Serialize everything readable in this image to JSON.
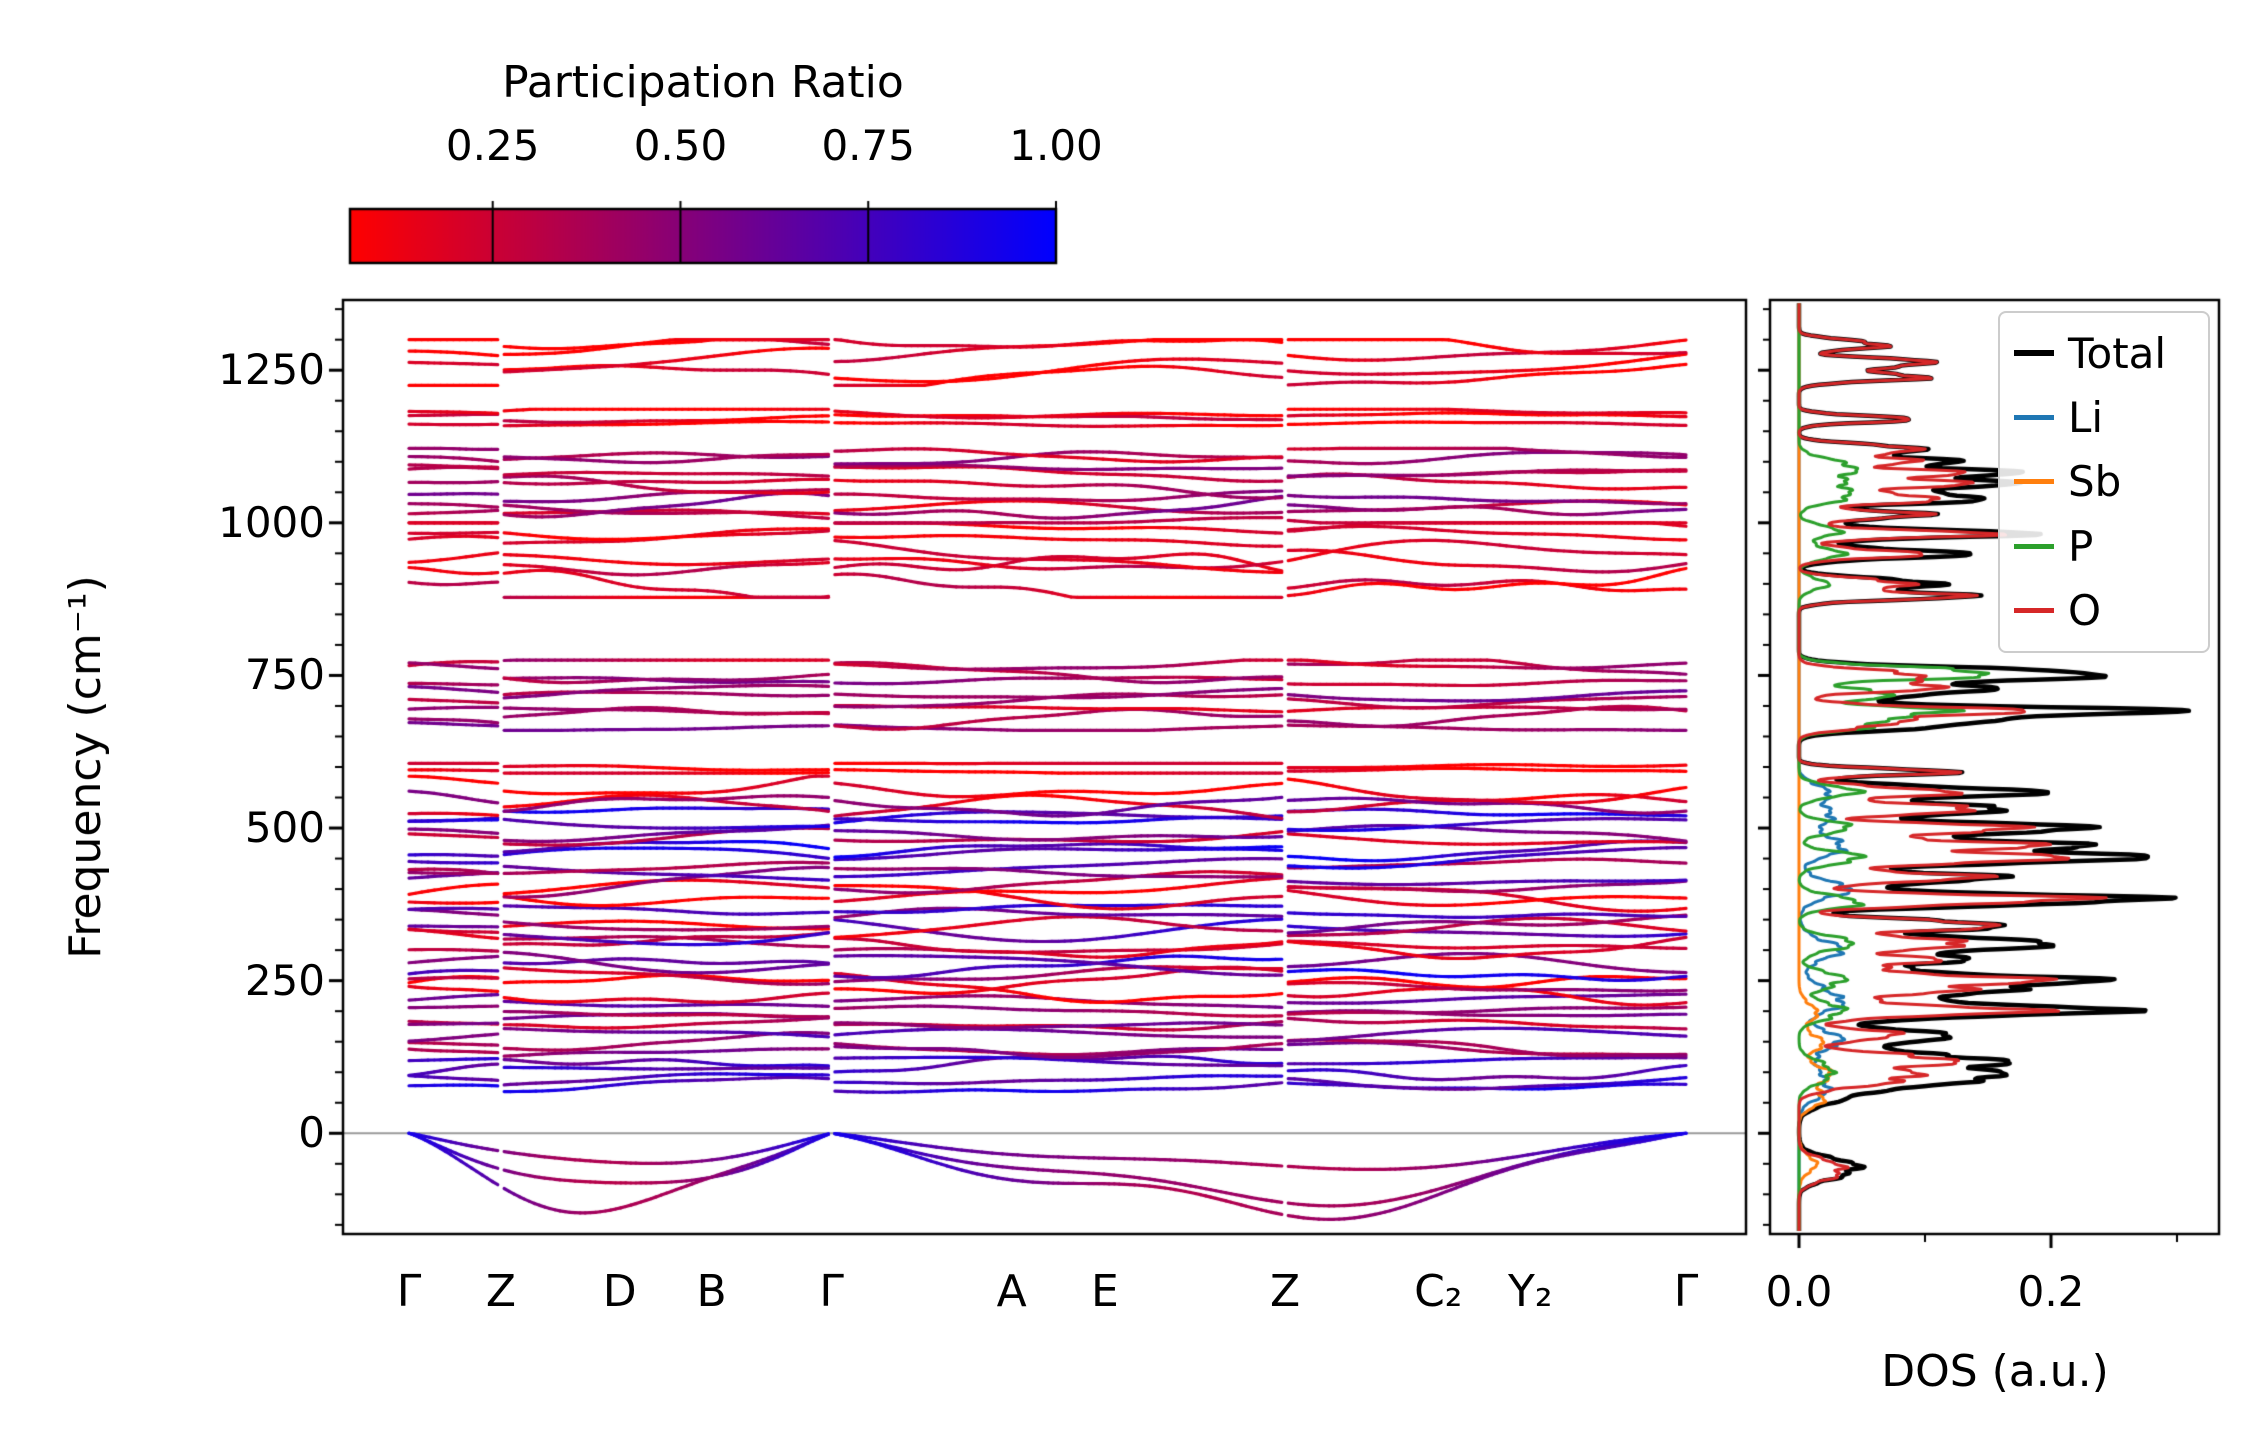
{
  "figure": {
    "kind": "phonon band structure with projected DOS",
    "background": "#ffffff"
  },
  "chart_data": {
    "type": "line",
    "colorbar": {
      "title": "Participation Ratio",
      "tick_labels": [
        "0.25",
        "0.50",
        "0.75",
        "1.00"
      ],
      "tick_values": [
        0.25,
        0.5,
        0.75,
        1.0
      ],
      "vmin": 0.06,
      "vmax": 1.0,
      "color_low": "#ff0000",
      "color_mid": "#7f007f",
      "color_high": "#0000ff"
    },
    "band_structure": {
      "y_axis": {
        "label": "Frequency (cm⁻¹)",
        "tick_labels": [
          "0",
          "250",
          "500",
          "750",
          "1000",
          "1250"
        ],
        "tick_values": [
          0,
          250,
          500,
          750,
          1000,
          1250
        ],
        "minor_step": 50,
        "lim": [
          -165,
          1365
        ]
      },
      "x_axis": {
        "labels": [
          "Γ",
          "Z",
          "D",
          "B",
          "Γ",
          "A",
          "E",
          "Z",
          "C₂",
          "Y₂",
          "Γ"
        ],
        "positions": [
          0,
          0.072,
          0.165,
          0.237,
          0.331,
          0.472,
          0.545,
          0.686,
          0.806,
          0.878,
          1.0
        ],
        "breaks": [
          0.072,
          0.331,
          0.686
        ]
      },
      "zero_line_color": "#9a9a9a",
      "band_groups": [
        {
          "name": "acoustic",
          "style": "acoustic",
          "f_min": -140,
          "f_max": 20,
          "count": 3,
          "depths": [
            52,
            95,
            140
          ],
          "pr_at_gamma": 0.92,
          "pr_dip": 0.55
        },
        {
          "name": "low-dense",
          "f_min": 55,
          "f_max": 585,
          "count": 36,
          "wiggle": 13,
          "pr_min": 0.15,
          "pr_max": 0.85,
          "red_bands_near": [
            238,
            390,
            450,
            580
          ],
          "blue_bands_near": [
            460,
            520
          ],
          "blue_below": 130
        },
        {
          "name": "red-598",
          "f_min": 590,
          "f_max": 606,
          "count": 2,
          "wiggle": 4,
          "pr_min": 0.08,
          "pr_max": 0.15
        },
        {
          "name": "mid-700",
          "f_min": 660,
          "f_max": 775,
          "count": 8,
          "wiggle": 9,
          "pr_min": 0.3,
          "pr_max": 0.55
        },
        {
          "name": "red-940",
          "f_min": 878,
          "f_max": 1000,
          "count": 6,
          "wiggle": 17,
          "pr_min": 0.1,
          "pr_max": 0.25
        },
        {
          "name": "purple-1060",
          "f_min": 1000,
          "f_max": 1122,
          "count": 9,
          "wiggle": 10,
          "pr_min": 0.2,
          "pr_max": 0.5
        },
        {
          "name": "red-1170",
          "f_min": 1158,
          "f_max": 1186,
          "count": 3,
          "wiggle": 6,
          "pr_min": 0.08,
          "pr_max": 0.18
        },
        {
          "name": "red-1265",
          "f_min": 1225,
          "f_max": 1300,
          "count": 4,
          "wiggle": 14,
          "pr_min": 0.08,
          "pr_max": 0.18
        }
      ]
    },
    "dos": {
      "xlabel": "DOS (a.u.)",
      "xtick_labels": [
        "0.0",
        "0.2"
      ],
      "xtick_values": [
        0.0,
        0.2
      ],
      "xtick_minor_values": [
        0.1,
        0.3
      ],
      "xlim": [
        -0.023,
        0.333
      ],
      "legend_labels": [
        "Total",
        "Li",
        "Sb",
        "P",
        "O"
      ],
      "series": [
        {
          "label": "Total",
          "color": "#000000",
          "sum_of_elements": true
        },
        {
          "label": "Li",
          "color": "#1f77b4",
          "peaks": [
            [
              80,
              0.025,
              20
            ],
            [
              150,
              0.03,
              20
            ],
            [
              220,
              0.035,
              18
            ],
            [
              300,
              0.03,
              18
            ],
            [
              400,
              0.035,
              16
            ],
            [
              470,
              0.04,
              14
            ],
            [
              520,
              0.03,
              14
            ],
            [
              560,
              0.025,
              12
            ]
          ]
        },
        {
          "label": "Sb",
          "color": "#ff7f0e",
          "peaks": [
            [
              -50,
              0.012,
              15
            ],
            [
              60,
              0.02,
              15
            ],
            [
              100,
              0.022,
              14
            ],
            [
              150,
              0.018,
              14
            ],
            [
              200,
              0.014,
              14
            ]
          ]
        },
        {
          "label": "P",
          "color": "#2ca02c",
          "peaks": [
            [
              100,
              0.03,
              15
            ],
            [
              200,
              0.04,
              12
            ],
            [
              250,
              0.04,
              12
            ],
            [
              310,
              0.04,
              12
            ],
            [
              380,
              0.05,
              10
            ],
            [
              450,
              0.05,
              10
            ],
            [
              500,
              0.04,
              10
            ],
            [
              560,
              0.04,
              10
            ],
            [
              670,
              0.06,
              9
            ],
            [
              690,
              0.12,
              8
            ],
            [
              720,
              0.08,
              8
            ],
            [
              750,
              0.12,
              8
            ],
            [
              763,
              0.06,
              7
            ],
            [
              900,
              0.02,
              10
            ],
            [
              950,
              0.03,
              10
            ],
            [
              985,
              0.03,
              10
            ],
            [
              1040,
              0.03,
              10
            ],
            [
              1062,
              0.035,
              10
            ],
            [
              1082,
              0.03,
              10
            ],
            [
              1100,
              0.025,
              10
            ]
          ]
        },
        {
          "label": "O",
          "color": "#d62728",
          "peaks": [
            [
              -60,
              0.04,
              14
            ],
            [
              90,
              0.1,
              12
            ],
            [
              122,
              0.12,
              10
            ],
            [
              162,
              0.07,
              10
            ],
            [
              200,
              0.16,
              9
            ],
            [
              232,
              0.12,
              9
            ],
            [
              252,
              0.15,
              9
            ],
            [
              282,
              0.12,
              9
            ],
            [
              312,
              0.13,
              9
            ],
            [
              340,
              0.15,
              9
            ],
            [
              382,
              0.24,
              8
            ],
            [
              420,
              0.16,
              8
            ],
            [
              450,
              0.18,
              8
            ],
            [
              472,
              0.21,
              8
            ],
            [
              500,
              0.16,
              8
            ],
            [
              530,
              0.15,
              8
            ],
            [
              560,
              0.13,
              8
            ],
            [
              592,
              0.1,
              6
            ],
            [
              670,
              0.08,
              8
            ],
            [
              692,
              0.15,
              8
            ],
            [
              730,
              0.1,
              8
            ],
            [
              752,
              0.1,
              8
            ],
            [
              880,
              0.11,
              7
            ],
            [
              902,
              0.1,
              7
            ],
            [
              950,
              0.11,
              7
            ],
            [
              982,
              0.13,
              7
            ],
            [
              1012,
              0.1,
              7
            ],
            [
              1040,
              0.12,
              7
            ],
            [
              1062,
              0.13,
              7
            ],
            [
              1082,
              0.11,
              7
            ],
            [
              1102,
              0.1,
              7
            ],
            [
              1122,
              0.08,
              7
            ],
            [
              1170,
              0.075,
              6
            ],
            [
              1240,
              0.11,
              7
            ],
            [
              1262,
              0.1,
              7
            ],
            [
              1292,
              0.08,
              7
            ]
          ]
        }
      ]
    }
  }
}
